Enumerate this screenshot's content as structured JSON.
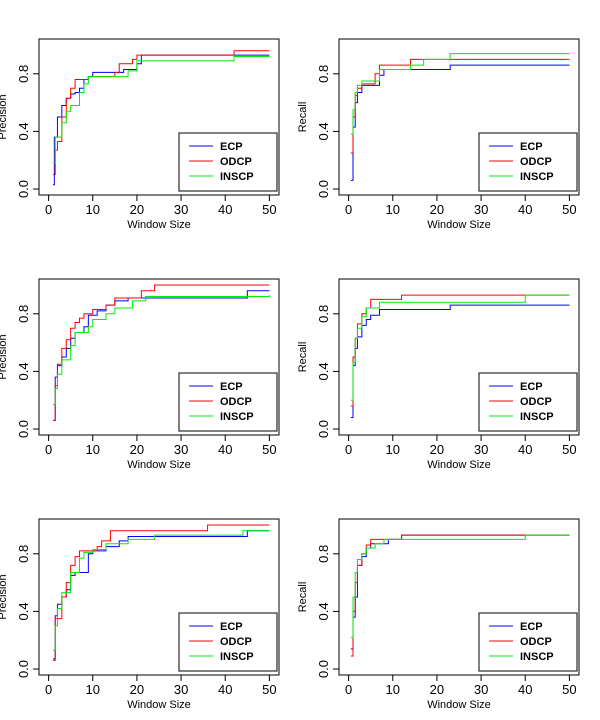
{
  "colors": {
    "ECP": "#0000ff",
    "ODCP": "#ff0000",
    "INSCP": "#00ee00"
  },
  "chart_data": [
    {
      "type": "line",
      "xlabel": "Window Size",
      "ylabel": "Precision",
      "xlim": [
        0,
        50
      ],
      "ylim": [
        0,
        1
      ],
      "xticks": [
        0,
        10,
        20,
        30,
        40,
        50
      ],
      "yticks": [
        0.0,
        0.4,
        0.8
      ],
      "x_tick_labels": [
        "0",
        "10",
        "20",
        "30",
        "40",
        "50"
      ],
      "y_tick_labels": [
        "0.0",
        "0.4",
        "0.8"
      ],
      "legend_position": "bottom-right",
      "series": [
        {
          "name": "ECP",
          "points": [
            [
              1,
              0.03
            ],
            [
              1.3,
              0.36
            ],
            [
              2,
              0.5
            ],
            [
              3,
              0.58
            ],
            [
              4,
              0.63
            ],
            [
              5,
              0.66
            ],
            [
              6,
              0.67
            ],
            [
              7,
              0.7
            ],
            [
              8,
              0.76
            ],
            [
              9,
              0.78
            ],
            [
              10,
              0.81
            ],
            [
              15,
              0.81
            ],
            [
              17,
              0.83
            ],
            [
              20,
              0.87
            ],
            [
              21,
              0.93
            ],
            [
              50,
              0.93
            ]
          ]
        },
        {
          "name": "ODCP",
          "points": [
            [
              1,
              0.1
            ],
            [
              1.5,
              0.27
            ],
            [
              2,
              0.33
            ],
            [
              3,
              0.5
            ],
            [
              4,
              0.63
            ],
            [
              5,
              0.7
            ],
            [
              6,
              0.76
            ],
            [
              9,
              0.78
            ],
            [
              15,
              0.81
            ],
            [
              16,
              0.87
            ],
            [
              19,
              0.9
            ],
            [
              20,
              0.93
            ],
            [
              42,
              0.96
            ],
            [
              50,
              0.96
            ]
          ]
        },
        {
          "name": "INSCP",
          "points": [
            [
              1,
              0.18
            ],
            [
              1.5,
              0.36
            ],
            [
              3,
              0.46
            ],
            [
              4,
              0.54
            ],
            [
              5,
              0.58
            ],
            [
              7,
              0.67
            ],
            [
              8,
              0.73
            ],
            [
              9,
              0.78
            ],
            [
              18,
              0.82
            ],
            [
              20,
              0.89
            ],
            [
              42,
              0.92
            ],
            [
              50,
              0.92
            ]
          ]
        }
      ]
    },
    {
      "type": "line",
      "xlabel": "Window Size",
      "ylabel": "Recall",
      "xlim": [
        0,
        50
      ],
      "ylim": [
        0,
        1
      ],
      "xticks": [
        0,
        10,
        20,
        30,
        40,
        50
      ],
      "yticks": [
        0.0,
        0.4,
        0.8
      ],
      "x_tick_labels": [
        "0",
        "10",
        "20",
        "30",
        "40",
        "50"
      ],
      "y_tick_labels": [
        "0.0",
        "0.4",
        "0.8"
      ],
      "legend_position": "bottom-right",
      "series": [
        {
          "name": "ECP",
          "points": [
            [
              0.5,
              0.06
            ],
            [
              1,
              0.43
            ],
            [
              1.5,
              0.6
            ],
            [
              2,
              0.67
            ],
            [
              3,
              0.72
            ],
            [
              7,
              0.79
            ],
            [
              8,
              0.83
            ],
            [
              23,
              0.86
            ],
            [
              50,
              0.86
            ]
          ]
        },
        {
          "name": "ODCP",
          "points": [
            [
              0.5,
              0.25
            ],
            [
              1,
              0.5
            ],
            [
              1.5,
              0.65
            ],
            [
              2,
              0.7
            ],
            [
              3,
              0.73
            ],
            [
              6,
              0.8
            ],
            [
              7,
              0.86
            ],
            [
              14,
              0.9
            ],
            [
              50,
              0.9
            ]
          ]
        },
        {
          "name": "INSCP",
          "points": [
            [
              0.5,
              0.38
            ],
            [
              1,
              0.55
            ],
            [
              1.5,
              0.67
            ],
            [
              2,
              0.72
            ],
            [
              3,
              0.75
            ],
            [
              7,
              0.83
            ],
            [
              14,
              0.86
            ],
            [
              17,
              0.9
            ],
            [
              23,
              0.94
            ],
            [
              50,
              0.94
            ]
          ]
        }
      ]
    },
    {
      "type": "line",
      "xlabel": "Window Size",
      "ylabel": "Precision",
      "xlim": [
        0,
        50
      ],
      "ylim": [
        0,
        1
      ],
      "xticks": [
        0,
        10,
        20,
        30,
        40,
        50
      ],
      "yticks": [
        0.0,
        0.4,
        0.8
      ],
      "x_tick_labels": [
        "0",
        "10",
        "20",
        "30",
        "40",
        "50"
      ],
      "y_tick_labels": [
        "0.0",
        "0.4",
        "0.8"
      ],
      "legend_position": "bottom-right",
      "series": [
        {
          "name": "ECP",
          "points": [
            [
              1,
              0.06
            ],
            [
              1.5,
              0.36
            ],
            [
              2,
              0.44
            ],
            [
              3,
              0.5
            ],
            [
              4,
              0.56
            ],
            [
              5,
              0.63
            ],
            [
              6,
              0.67
            ],
            [
              8,
              0.71
            ],
            [
              9,
              0.79
            ],
            [
              11,
              0.82
            ],
            [
              13,
              0.86
            ],
            [
              15,
              0.89
            ],
            [
              18,
              0.91
            ],
            [
              45,
              0.96
            ],
            [
              50,
              0.96
            ]
          ]
        },
        {
          "name": "ODCP",
          "points": [
            [
              1,
              0.06
            ],
            [
              1.5,
              0.3
            ],
            [
              2,
              0.45
            ],
            [
              3,
              0.56
            ],
            [
              4,
              0.62
            ],
            [
              5,
              0.7
            ],
            [
              6,
              0.74
            ],
            [
              7,
              0.77
            ],
            [
              8,
              0.8
            ],
            [
              10,
              0.83
            ],
            [
              13,
              0.86
            ],
            [
              15,
              0.91
            ],
            [
              21,
              0.96
            ],
            [
              24,
              1.0
            ],
            [
              50,
              1.0
            ]
          ]
        },
        {
          "name": "INSCP",
          "points": [
            [
              1,
              0.17
            ],
            [
              1.5,
              0.28
            ],
            [
              2,
              0.38
            ],
            [
              3,
              0.48
            ],
            [
              5,
              0.58
            ],
            [
              6,
              0.67
            ],
            [
              9,
              0.71
            ],
            [
              10,
              0.76
            ],
            [
              13,
              0.8
            ],
            [
              15,
              0.84
            ],
            [
              19,
              0.89
            ],
            [
              22,
              0.92
            ],
            [
              50,
              0.93
            ]
          ]
        }
      ]
    },
    {
      "type": "line",
      "xlabel": "Window Size",
      "ylabel": "Recall",
      "xlim": [
        0,
        50
      ],
      "ylim": [
        0,
        1
      ],
      "xticks": [
        0,
        10,
        20,
        30,
        40,
        50
      ],
      "yticks": [
        0.0,
        0.4,
        0.8
      ],
      "x_tick_labels": [
        "0",
        "10",
        "20",
        "30",
        "40",
        "50"
      ],
      "y_tick_labels": [
        "0.0",
        "0.4",
        "0.8"
      ],
      "legend_position": "bottom-right",
      "series": [
        {
          "name": "ECP",
          "points": [
            [
              0.5,
              0.08
            ],
            [
              1,
              0.44
            ],
            [
              1.5,
              0.56
            ],
            [
              2,
              0.64
            ],
            [
              3,
              0.72
            ],
            [
              4,
              0.76
            ],
            [
              5,
              0.79
            ],
            [
              7,
              0.83
            ],
            [
              23,
              0.86
            ],
            [
              50,
              0.86
            ]
          ]
        },
        {
          "name": "ODCP",
          "points": [
            [
              0.5,
              0.16
            ],
            [
              1,
              0.5
            ],
            [
              1.5,
              0.63
            ],
            [
              2,
              0.73
            ],
            [
              3,
              0.8
            ],
            [
              4,
              0.84
            ],
            [
              5,
              0.9
            ],
            [
              12,
              0.93
            ],
            [
              50,
              0.93
            ]
          ]
        },
        {
          "name": "INSCP",
          "points": [
            [
              0.5,
              0.2
            ],
            [
              1,
              0.46
            ],
            [
              1.5,
              0.63
            ],
            [
              2,
              0.7
            ],
            [
              3,
              0.78
            ],
            [
              4,
              0.84
            ],
            [
              7,
              0.88
            ],
            [
              40,
              0.93
            ],
            [
              50,
              0.93
            ]
          ]
        }
      ]
    },
    {
      "type": "line",
      "xlabel": "Window Size",
      "ylabel": "Precision",
      "xlim": [
        0,
        50
      ],
      "ylim": [
        0,
        1
      ],
      "xticks": [
        0,
        10,
        20,
        30,
        40,
        50
      ],
      "yticks": [
        0.0,
        0.4,
        0.8
      ],
      "x_tick_labels": [
        "0",
        "10",
        "20",
        "30",
        "40",
        "50"
      ],
      "y_tick_labels": [
        "0.0",
        "0.4",
        "0.8"
      ],
      "legend_position": "bottom-right",
      "series": [
        {
          "name": "ECP",
          "points": [
            [
              1,
              0.07
            ],
            [
              1.5,
              0.37
            ],
            [
              2,
              0.45
            ],
            [
              3,
              0.5
            ],
            [
              4,
              0.55
            ],
            [
              5,
              0.65
            ],
            [
              6,
              0.67
            ],
            [
              9,
              0.8
            ],
            [
              10,
              0.82
            ],
            [
              13,
              0.85
            ],
            [
              16,
              0.89
            ],
            [
              18,
              0.92
            ],
            [
              45,
              0.96
            ],
            [
              50,
              0.96
            ]
          ]
        },
        {
          "name": "ODCP",
          "points": [
            [
              1,
              0.06
            ],
            [
              1.5,
              0.35
            ],
            [
              3,
              0.5
            ],
            [
              4,
              0.6
            ],
            [
              5,
              0.72
            ],
            [
              6,
              0.78
            ],
            [
              7,
              0.82
            ],
            [
              11,
              0.85
            ],
            [
              12,
              0.89
            ],
            [
              14,
              0.96
            ],
            [
              36,
              1.0
            ],
            [
              50,
              1.0
            ]
          ]
        },
        {
          "name": "INSCP",
          "points": [
            [
              1,
              0.13
            ],
            [
              1.5,
              0.3
            ],
            [
              2,
              0.42
            ],
            [
              3,
              0.53
            ],
            [
              5,
              0.67
            ],
            [
              7,
              0.77
            ],
            [
              8,
              0.81
            ],
            [
              10,
              0.83
            ],
            [
              13,
              0.87
            ],
            [
              18,
              0.9
            ],
            [
              24,
              0.93
            ],
            [
              44,
              0.96
            ],
            [
              50,
              0.96
            ]
          ]
        }
      ]
    },
    {
      "type": "line",
      "xlabel": "Window Size",
      "ylabel": "Recall",
      "xlim": [
        0,
        50
      ],
      "ylim": [
        0,
        1
      ],
      "xticks": [
        0,
        10,
        20,
        30,
        40,
        50
      ],
      "yticks": [
        0.0,
        0.4,
        0.8
      ],
      "x_tick_labels": [
        "0",
        "10",
        "20",
        "30",
        "40",
        "50"
      ],
      "y_tick_labels": [
        "0.0",
        "0.4",
        "0.8"
      ],
      "legend_position": "bottom-right",
      "series": [
        {
          "name": "ECP",
          "points": [
            [
              0.5,
              0.14
            ],
            [
              1,
              0.36
            ],
            [
              1.5,
              0.5
            ],
            [
              2,
              0.72
            ],
            [
              3,
              0.78
            ],
            [
              4,
              0.84
            ],
            [
              5,
              0.87
            ],
            [
              9,
              0.9
            ],
            [
              12,
              0.93
            ],
            [
              50,
              0.93
            ]
          ]
        },
        {
          "name": "ODCP",
          "points": [
            [
              0.5,
              0.09
            ],
            [
              1,
              0.4
            ],
            [
              1.5,
              0.6
            ],
            [
              2,
              0.72
            ],
            [
              3,
              0.8
            ],
            [
              4,
              0.86
            ],
            [
              5,
              0.9
            ],
            [
              12,
              0.93
            ],
            [
              50,
              0.93
            ]
          ]
        },
        {
          "name": "INSCP",
          "points": [
            [
              0.5,
              0.22
            ],
            [
              1,
              0.5
            ],
            [
              1.5,
              0.67
            ],
            [
              2,
              0.76
            ],
            [
              3,
              0.8
            ],
            [
              4,
              0.84
            ],
            [
              6,
              0.87
            ],
            [
              8,
              0.9
            ],
            [
              40,
              0.93
            ],
            [
              50,
              0.93
            ]
          ]
        }
      ]
    }
  ]
}
